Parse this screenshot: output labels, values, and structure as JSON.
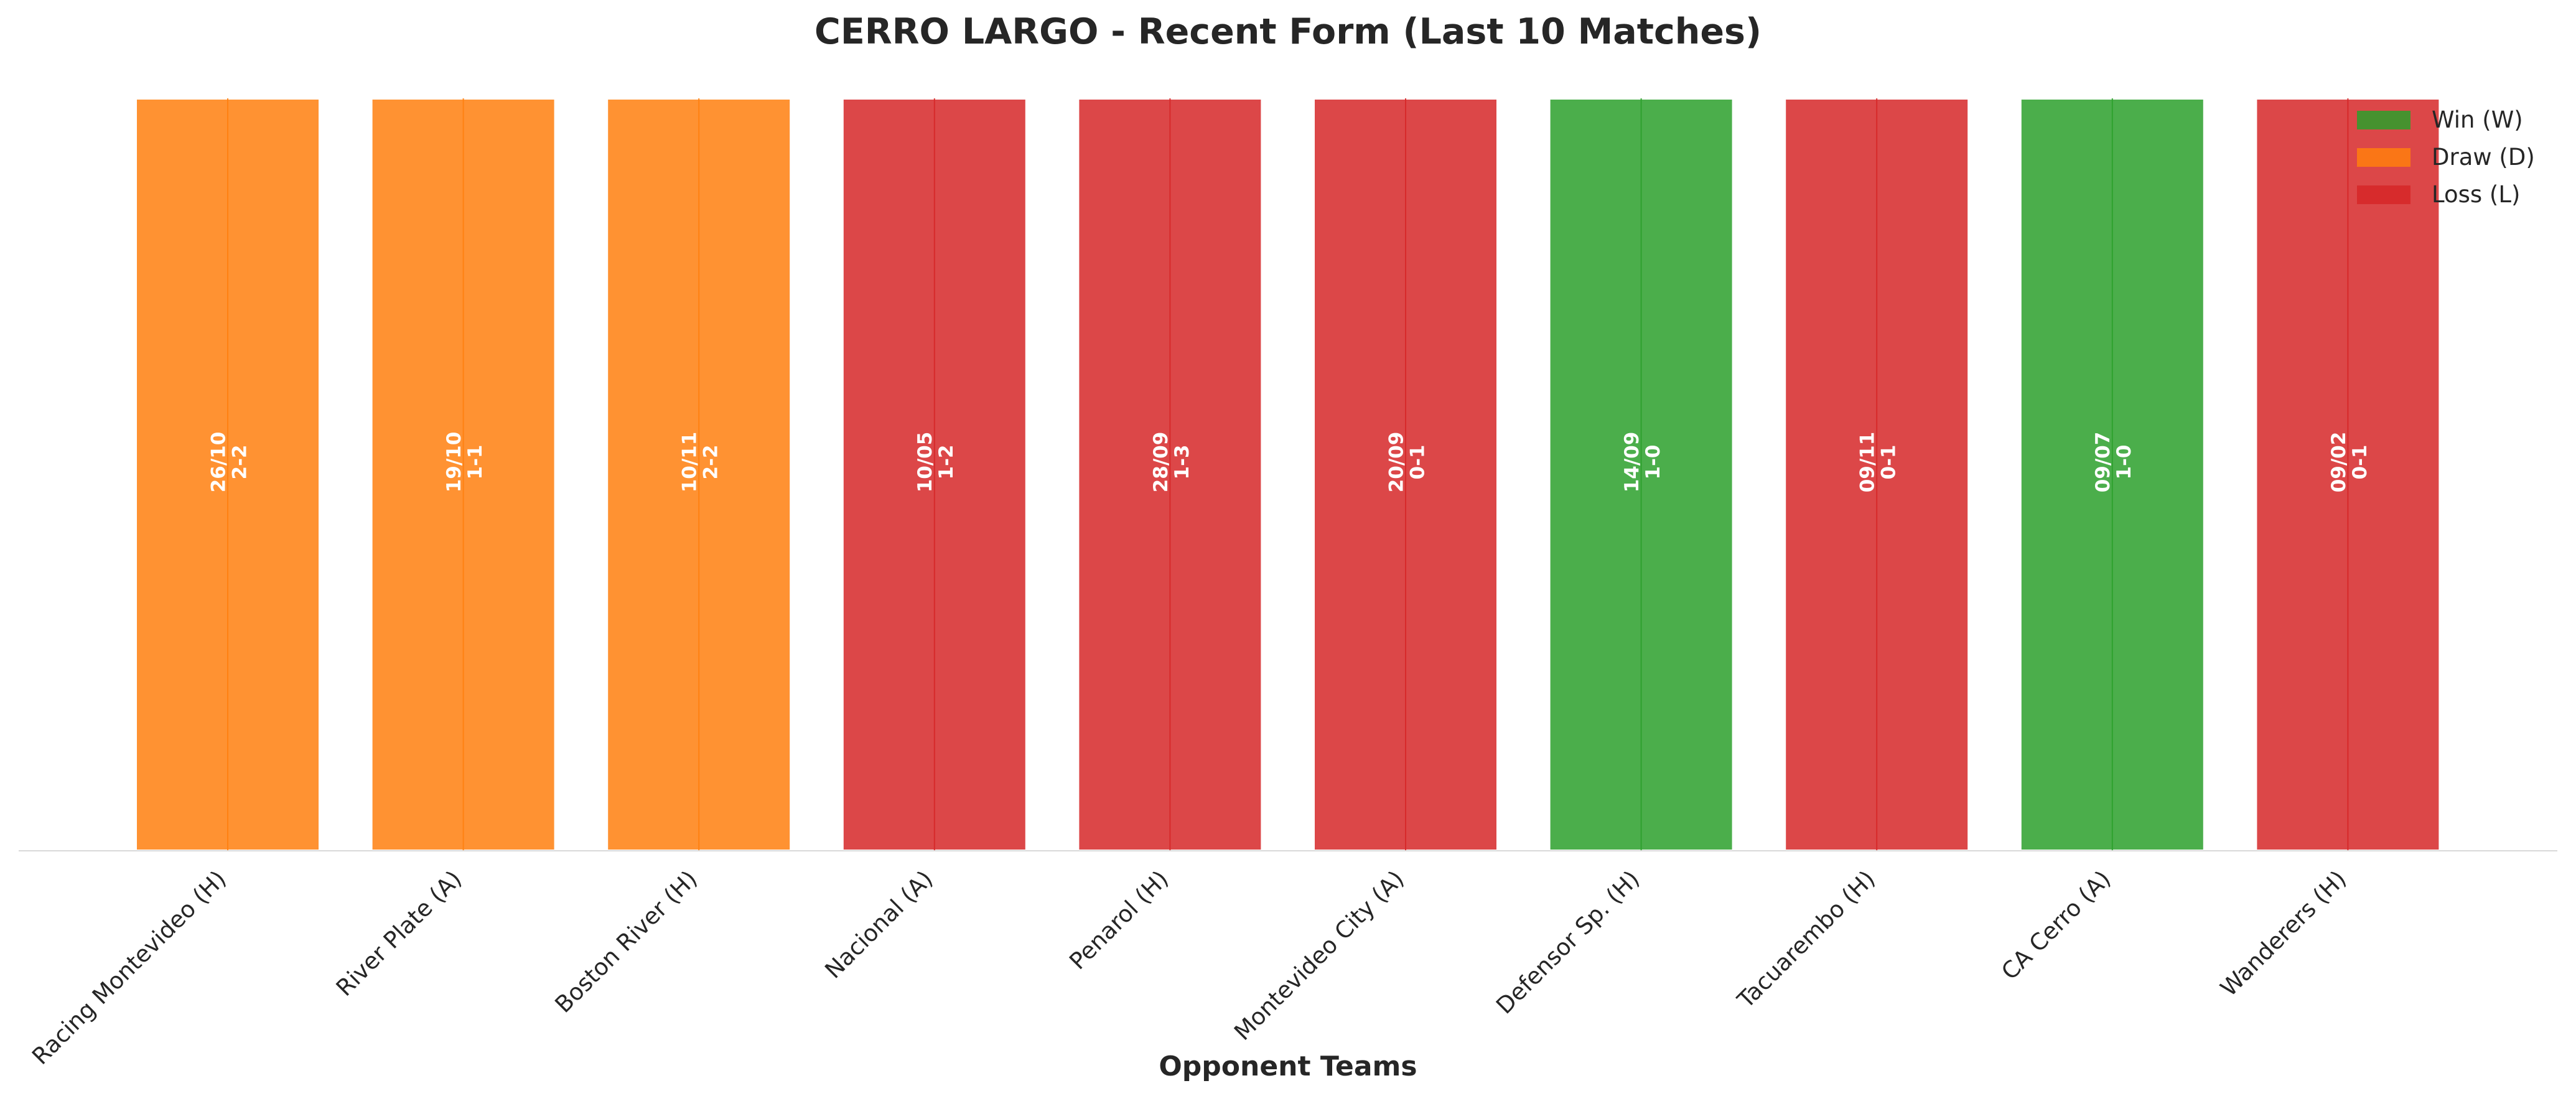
{
  "chart_data": {
    "type": "bar",
    "title": "CERRO LARGO - Recent Form (Last 10 Matches)",
    "xlabel": "Opponent Teams",
    "ylabel": "",
    "ylim": [
      0,
      1
    ],
    "grid": false,
    "legend_position": "top-right",
    "categories": [
      "Racing Montevideo (H)",
      "River Plate (A)",
      "Boston River (H)",
      "Nacional (A)",
      "Penarol (H)",
      "Montevideo City (A)",
      "Defensor Sp. (H)",
      "Tacuarembo (H)",
      "CA Cerro (A)",
      "Wanderers (H)"
    ],
    "values": [
      1,
      1,
      1,
      1,
      1,
      1,
      1,
      1,
      1,
      1
    ],
    "results": [
      "D",
      "D",
      "D",
      "L",
      "L",
      "L",
      "W",
      "L",
      "W",
      "L"
    ],
    "dates": [
      "26/10",
      "19/10",
      "10/11",
      "10/05",
      "28/09",
      "20/09",
      "14/09",
      "09/11",
      "09/07",
      "09/02"
    ],
    "scores": [
      "2-2",
      "1-1",
      "2-2",
      "1-2",
      "1-3",
      "0-1",
      "1-0",
      "0-1",
      "1-0",
      "0-1"
    ],
    "legend": [
      {
        "key": "W",
        "label": "Win (W)",
        "color": "#2ca02c"
      },
      {
        "key": "D",
        "label": "Draw (D)",
        "color": "#ff7f0e"
      },
      {
        "key": "L",
        "label": "Loss (L)",
        "color": "#d62728"
      }
    ]
  }
}
